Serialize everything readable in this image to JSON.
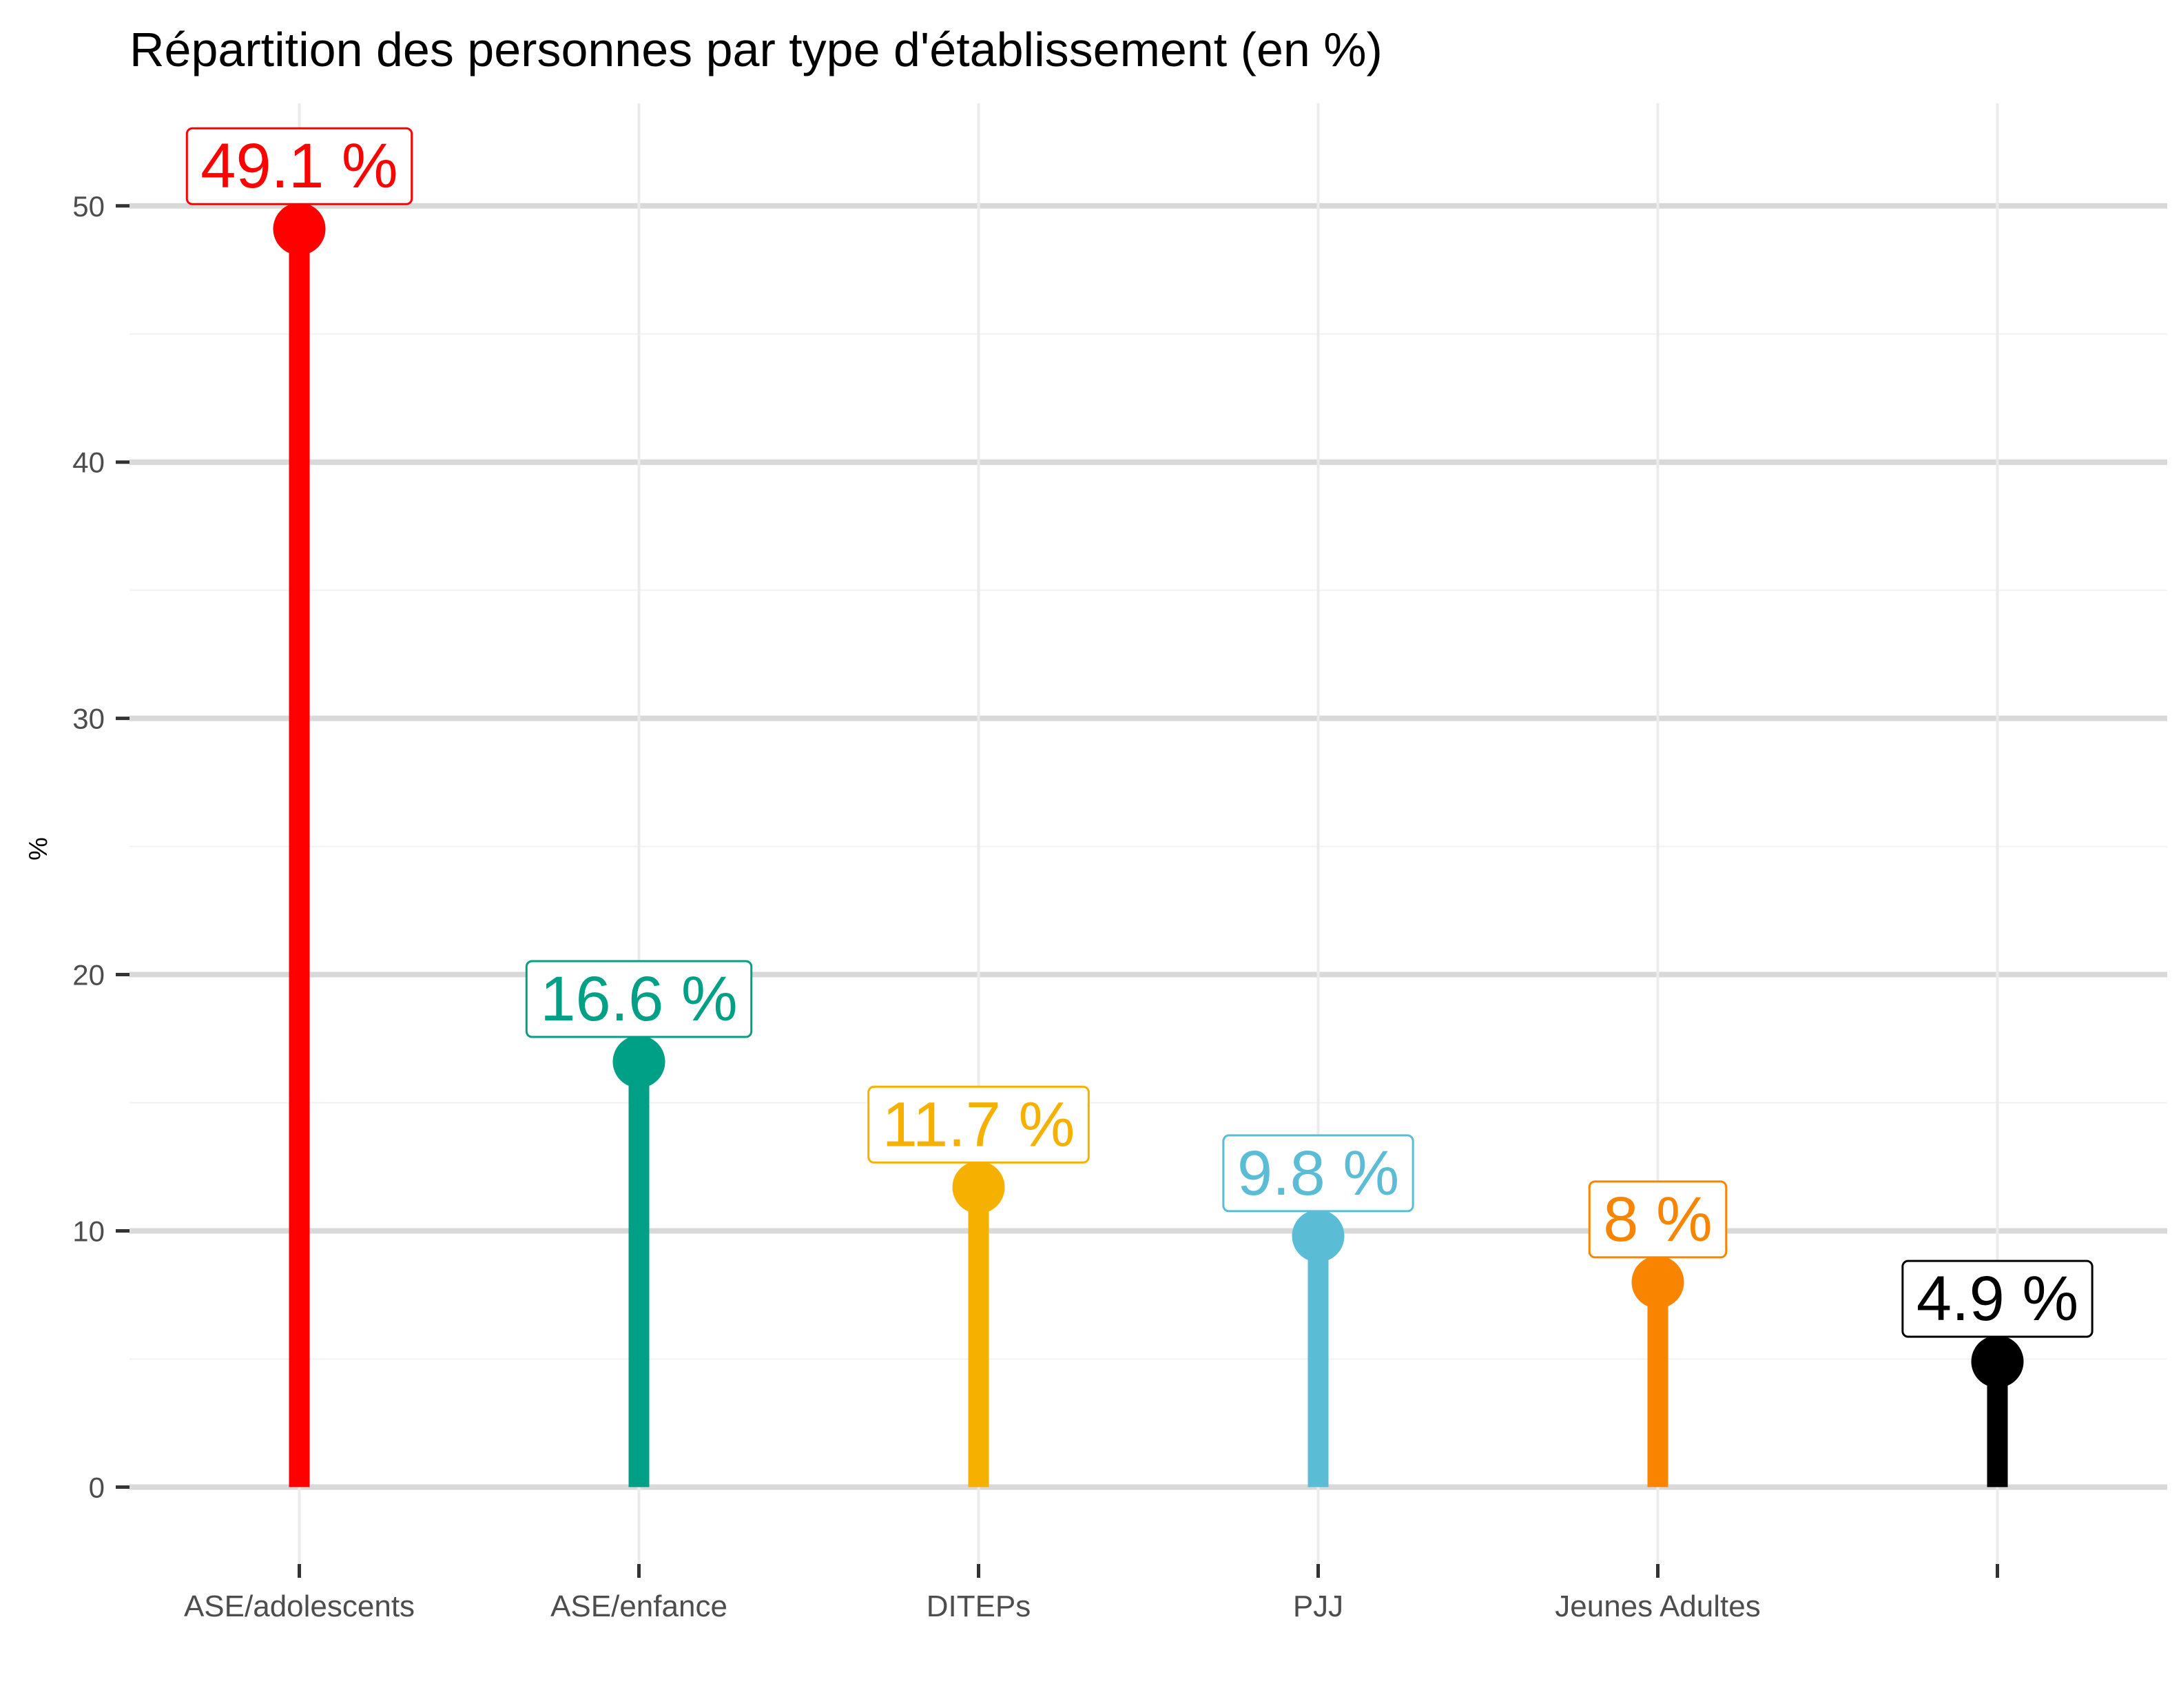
{
  "chart_data": {
    "type": "lollipop",
    "title": "Répartition des personnes par type d'établissement (en %)",
    "xlabel": "",
    "ylabel": "%",
    "ylim": [
      -3,
      54
    ],
    "yticks": [
      0,
      10,
      20,
      30,
      40,
      50
    ],
    "grid": true,
    "legend": "none",
    "categories": [
      "ASE/adolescents",
      "ASE/enfance",
      "DITEPs",
      "PJJ",
      "Jeunes Adultes",
      ""
    ],
    "values": [
      49.1,
      16.6,
      11.7,
      9.8,
      8,
      4.9
    ],
    "data_labels": [
      "49.1 %",
      "16.6 %",
      "11.7 %",
      "9.8 %",
      "8 %",
      "4.9 %"
    ],
    "colors": [
      "#ff0000",
      "#00a087",
      "#f5b000",
      "#5bbcd6",
      "#f98400",
      "#000000"
    ]
  }
}
